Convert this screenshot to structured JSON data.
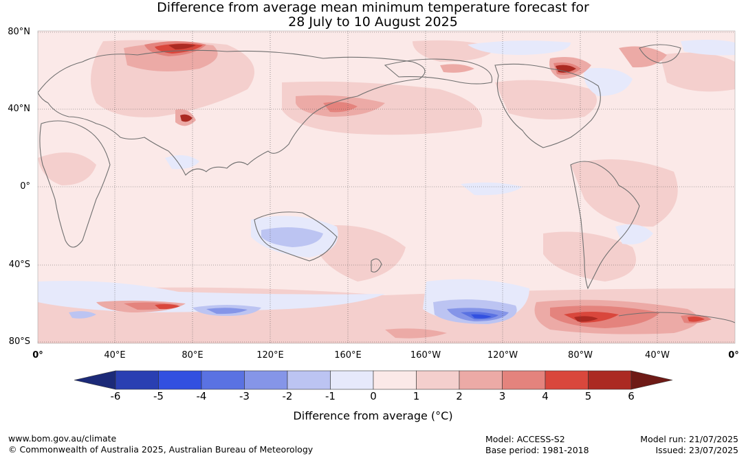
{
  "title": {
    "line1": "Difference from average mean minimum temperature forecast for",
    "line2": "28 July to 10 August 2025"
  },
  "map": {
    "latitude_labels": [
      "80°N",
      "40°N",
      "0°",
      "40°S",
      "80°S"
    ],
    "longitude_labels": [
      "0°",
      "40°E",
      "80°E",
      "120°E",
      "160°E",
      "160°W",
      "120°W",
      "80°W",
      "40°W",
      "0°"
    ],
    "background_anomaly_color": "#fbe9e8",
    "land_outline_color": "#6e6e6e"
  },
  "colorbar": {
    "tick_labels": [
      "-6",
      "-5",
      "-4",
      "-3",
      "-2",
      "-1",
      "0",
      "1",
      "2",
      "3",
      "4",
      "5",
      "6"
    ],
    "bins": [
      {
        "range": "< -6",
        "color": "#1c2a78"
      },
      {
        "range": "-6 to -5",
        "color": "#2a3fb2"
      },
      {
        "range": "-5 to -4",
        "color": "#3250e0"
      },
      {
        "range": "-4 to -3",
        "color": "#5a72e2"
      },
      {
        "range": "-3 to -2",
        "color": "#8595e8"
      },
      {
        "range": "-2 to -1",
        "color": "#bcc4f2"
      },
      {
        "range": "-1 to 0",
        "color": "#e6e9fb"
      },
      {
        "range": "0 to 1",
        "color": "#fbe9e8"
      },
      {
        "range": "1 to 2",
        "color": "#f4cfcd"
      },
      {
        "range": "2 to 3",
        "color": "#ecaaa6"
      },
      {
        "range": "3 to 4",
        "color": "#e4837d"
      },
      {
        "range": "4 to 5",
        "color": "#d9473c"
      },
      {
        "range": "5 to 6",
        "color": "#ab2a22"
      },
      {
        "range": "> 6",
        "color": "#6e1a16"
      }
    ],
    "label": "Difference from average (°C)"
  },
  "footer": {
    "website": "www.bom.gov.au/climate",
    "copyright": "© Commonwealth of Australia 2025, Australian Bureau of Meteorology",
    "model": "Model: ACCESS-S2",
    "base_period": "Base period: 1981-2018",
    "model_run": "Model run: 21/07/2025",
    "issued": "Issued: 23/07/2025"
  }
}
